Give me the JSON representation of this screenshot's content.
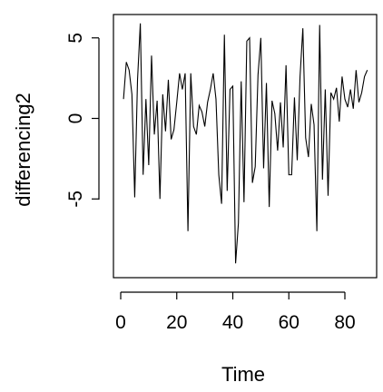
{
  "chart_data": {
    "type": "line",
    "xlabel": "Time",
    "ylabel": "differencing2",
    "xlim": [
      1,
      88
    ],
    "ylim": [
      -9,
      6
    ],
    "x_ticks": [
      0,
      20,
      40,
      60,
      80
    ],
    "x_tick_labels": [
      "0",
      "20",
      "40",
      "60",
      "80"
    ],
    "y_ticks": [
      -5,
      0,
      5
    ],
    "y_tick_labels": [
      "-5",
      "0",
      "5"
    ],
    "grid": false,
    "legend": "none",
    "line_color": "#000000",
    "series": [
      {
        "x": [
          1,
          2,
          3,
          4,
          5,
          6,
          7,
          8,
          9,
          10,
          11,
          12,
          13,
          14,
          15,
          16,
          17,
          18,
          19,
          20,
          21,
          22,
          23,
          24,
          25,
          26,
          27,
          28,
          29,
          30,
          31,
          32,
          33,
          34,
          35,
          36,
          37,
          38,
          39,
          40,
          41,
          42,
          43,
          44,
          45,
          46,
          47,
          48,
          49,
          50,
          51,
          52,
          53,
          54,
          55,
          56,
          57,
          58,
          59,
          60,
          61,
          62,
          63,
          64,
          65,
          66,
          67,
          68,
          69,
          70,
          71,
          72,
          73,
          74,
          75,
          76,
          77,
          78,
          79,
          80,
          81,
          82,
          83,
          84,
          85,
          86,
          87,
          88
        ],
        "values": [
          1.2,
          3.5,
          3.0,
          1.5,
          -4.9,
          2.4,
          5.9,
          -3.5,
          1.2,
          -2.9,
          3.9,
          -1.0,
          1.1,
          -5.0,
          1.5,
          -0.8,
          2.4,
          -1.3,
          -0.7,
          1.0,
          2.8,
          1.8,
          2.8,
          -7.0,
          2.8,
          -0.5,
          -1.0,
          0.8,
          0.4,
          -0.5,
          1.0,
          1.8,
          2.8,
          1.2,
          -3.5,
          -5.3,
          5.2,
          -4.5,
          1.8,
          2.0,
          -9.0,
          -6.5,
          2.3,
          -5.2,
          4.8,
          5.0,
          -4.0,
          -3.0,
          2.7,
          5.0,
          -3.1,
          2.2,
          -5.5,
          1.1,
          0.3,
          -2.0,
          1.0,
          -1.8,
          3.3,
          -3.5,
          -3.5,
          1.3,
          -2.6,
          2.6,
          5.6,
          -1.2,
          -2.4,
          0.9,
          -0.4,
          -7.0,
          5.8,
          -3.8,
          1.8,
          -4.8,
          1.6,
          1.2,
          1.9,
          -0.2,
          2.6,
          1.2,
          0.7,
          1.8,
          0.6,
          3.0,
          1.0,
          1.6,
          2.6,
          3.0
        ]
      }
    ]
  }
}
